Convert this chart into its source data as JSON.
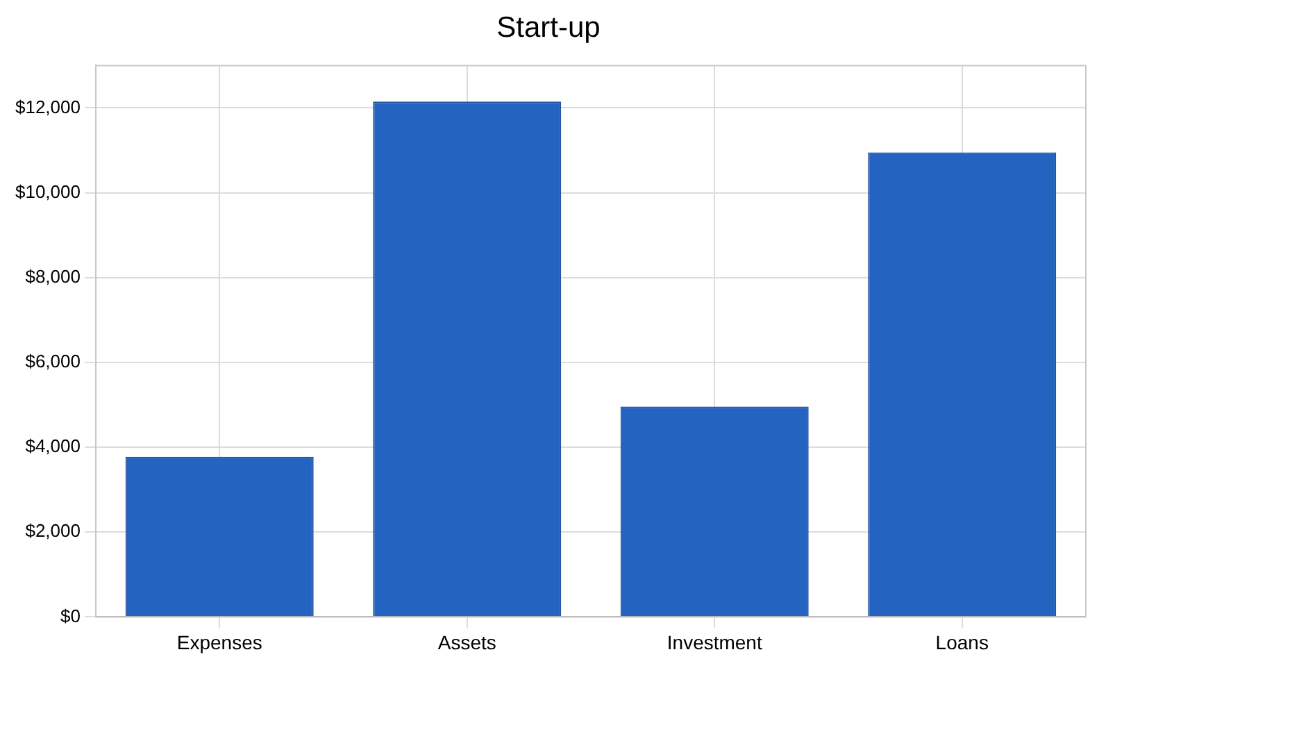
{
  "chart_data": {
    "type": "bar",
    "title": "Start-up",
    "categories": [
      "Expenses",
      "Assets",
      "Investment",
      "Loans"
    ],
    "values": [
      3775,
      12150,
      4960,
      10950
    ],
    "color": "#2563c0",
    "ylim": [
      0,
      13000
    ],
    "yticks": [
      {
        "value": 0,
        "label": "$0"
      },
      {
        "value": 2000,
        "label": "$2,000"
      },
      {
        "value": 4000,
        "label": "$4,000"
      },
      {
        "value": 6000,
        "label": "$6,000"
      },
      {
        "value": 8000,
        "label": "$8,000"
      },
      {
        "value": 10000,
        "label": "$10,000"
      },
      {
        "value": 12000,
        "label": "$12,000"
      }
    ],
    "grid": true,
    "legend": false
  }
}
